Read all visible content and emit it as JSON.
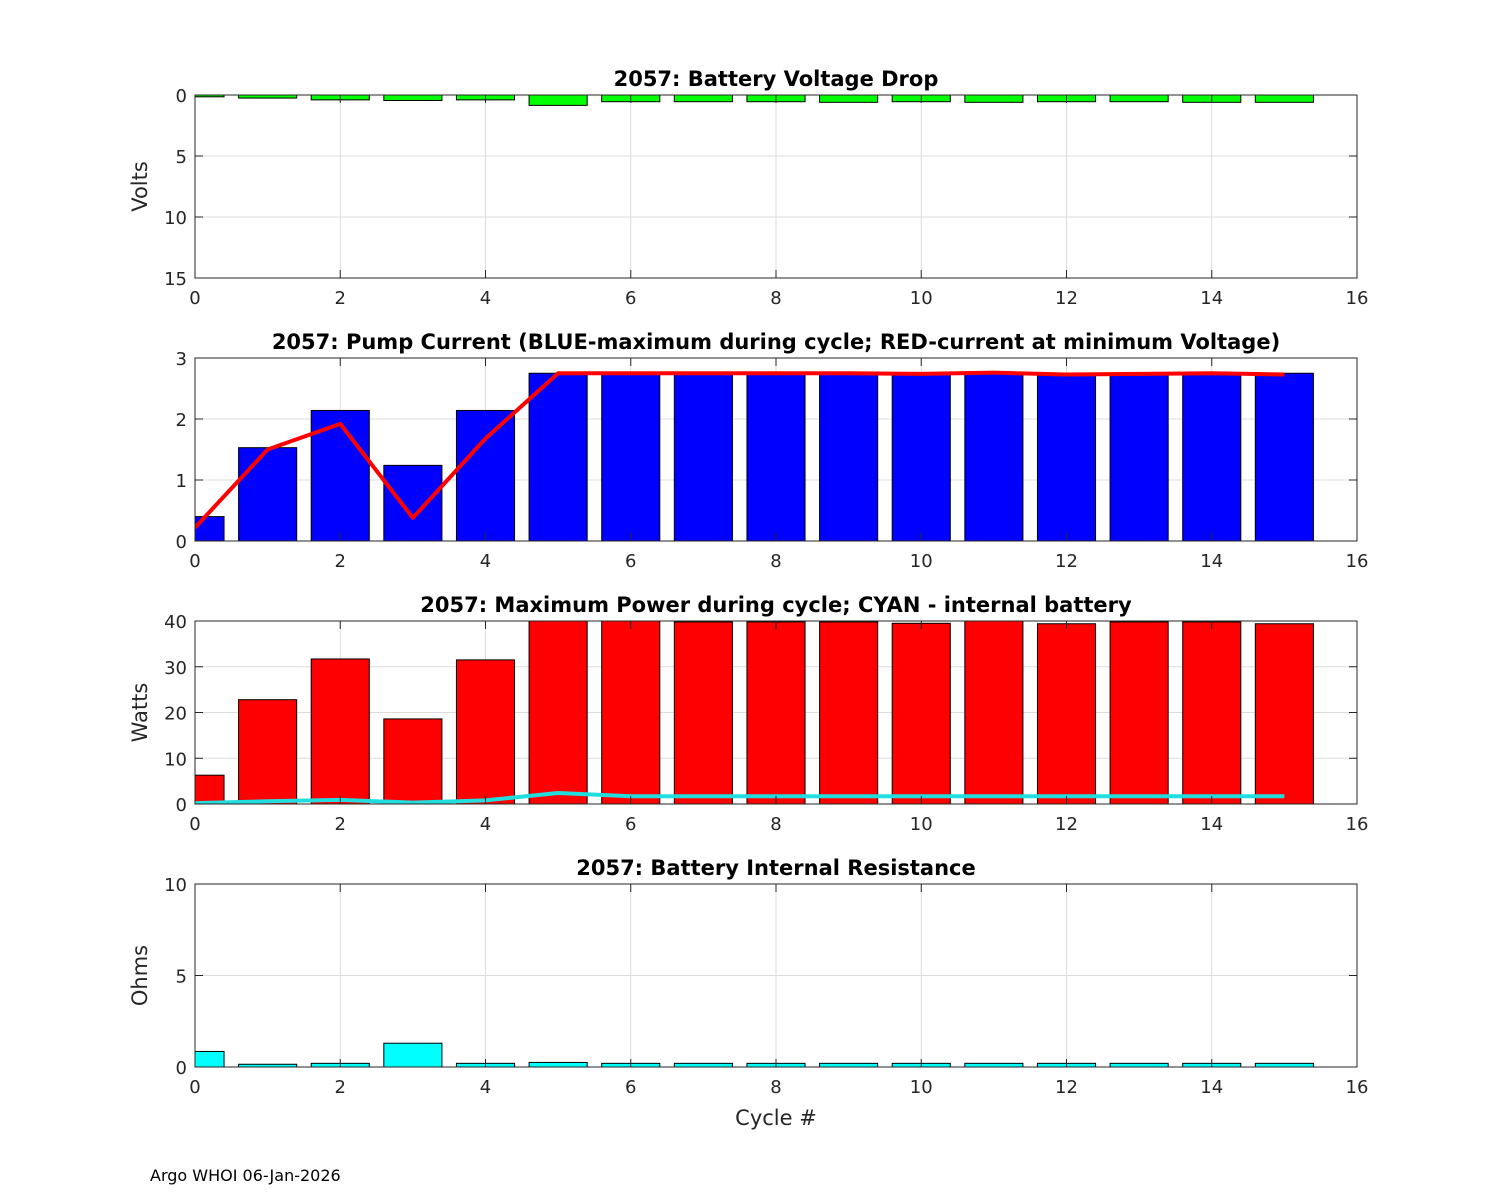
{
  "footer": "Argo WHOI 06-Jan-2026",
  "chart_data": [
    {
      "type": "bar",
      "title": "2057: Battery Voltage Drop",
      "xlabel": "",
      "ylabel": "Volts",
      "xlim": [
        0,
        16
      ],
      "ylim": [
        0,
        15
      ],
      "y_reversed": true,
      "xticks": [
        0,
        2,
        4,
        6,
        8,
        10,
        12,
        14,
        16
      ],
      "yticks": [
        0,
        5,
        10,
        15
      ],
      "grid": true,
      "x": [
        0,
        1,
        2,
        3,
        4,
        5,
        6,
        7,
        8,
        9,
        10,
        11,
        12,
        13,
        14,
        15
      ],
      "bar_color": "#00ff00",
      "values": [
        0.15,
        0.25,
        0.4,
        0.45,
        0.4,
        0.85,
        0.55,
        0.55,
        0.55,
        0.6,
        0.55,
        0.6,
        0.55,
        0.55,
        0.6,
        0.6
      ]
    },
    {
      "type": "bar",
      "title": "2057: Pump Current (BLUE-maximum during cycle; RED-current at minimum Voltage)",
      "xlabel": "",
      "ylabel": "",
      "xlim": [
        0,
        16
      ],
      "ylim": [
        0,
        3
      ],
      "xticks": [
        0,
        2,
        4,
        6,
        8,
        10,
        12,
        14,
        16
      ],
      "yticks": [
        0,
        1,
        2,
        3
      ],
      "grid": true,
      "x": [
        0,
        1,
        2,
        3,
        4,
        5,
        6,
        7,
        8,
        9,
        10,
        11,
        12,
        13,
        14,
        15
      ],
      "bar_color": "#0000ff",
      "values": [
        0.4,
        1.53,
        2.14,
        1.24,
        2.14,
        2.75,
        2.75,
        2.75,
        2.75,
        2.75,
        2.75,
        2.75,
        2.75,
        2.75,
        2.75,
        2.75
      ],
      "line_color": "#ff0000",
      "line_values": [
        0.22,
        1.5,
        1.92,
        0.38,
        1.68,
        2.75,
        2.75,
        2.75,
        2.75,
        2.75,
        2.74,
        2.76,
        2.73,
        2.74,
        2.75,
        2.73
      ]
    },
    {
      "type": "bar",
      "title": "2057: Maximum Power during cycle; CYAN - internal battery",
      "xlabel": "",
      "ylabel": "Watts",
      "xlim": [
        0,
        16
      ],
      "ylim": [
        0,
        40
      ],
      "xticks": [
        0,
        2,
        4,
        6,
        8,
        10,
        12,
        14,
        16
      ],
      "yticks": [
        0,
        10,
        20,
        30,
        40
      ],
      "grid": true,
      "x": [
        0,
        1,
        2,
        3,
        4,
        5,
        6,
        7,
        8,
        9,
        10,
        11,
        12,
        13,
        14,
        15
      ],
      "bar_color": "#ff0000",
      "values": [
        6.3,
        22.8,
        31.7,
        18.6,
        31.5,
        40,
        40,
        39.8,
        39.8,
        39.8,
        39.5,
        40,
        39.4,
        39.8,
        39.8,
        39.4
      ],
      "line_color": "#22dddd",
      "line_values": [
        0.2,
        0.6,
        0.9,
        0.3,
        0.8,
        2.4,
        1.7,
        1.7,
        1.7,
        1.7,
        1.7,
        1.7,
        1.7,
        1.7,
        1.7,
        1.7
      ]
    },
    {
      "type": "bar",
      "title": "2057: Battery Internal Resistance",
      "xlabel": "Cycle #",
      "ylabel": "Ohms",
      "xlim": [
        0,
        16
      ],
      "ylim": [
        0,
        10
      ],
      "xticks": [
        0,
        2,
        4,
        6,
        8,
        10,
        12,
        14,
        16
      ],
      "yticks": [
        0,
        5,
        10
      ],
      "grid": true,
      "x": [
        0,
        1,
        2,
        3,
        4,
        5,
        6,
        7,
        8,
        9,
        10,
        11,
        12,
        13,
        14,
        15
      ],
      "bar_color": "#00ffff",
      "values": [
        0.85,
        0.15,
        0.2,
        1.3,
        0.2,
        0.25,
        0.2,
        0.2,
        0.2,
        0.2,
        0.2,
        0.2,
        0.2,
        0.2,
        0.2,
        0.2
      ]
    }
  ]
}
